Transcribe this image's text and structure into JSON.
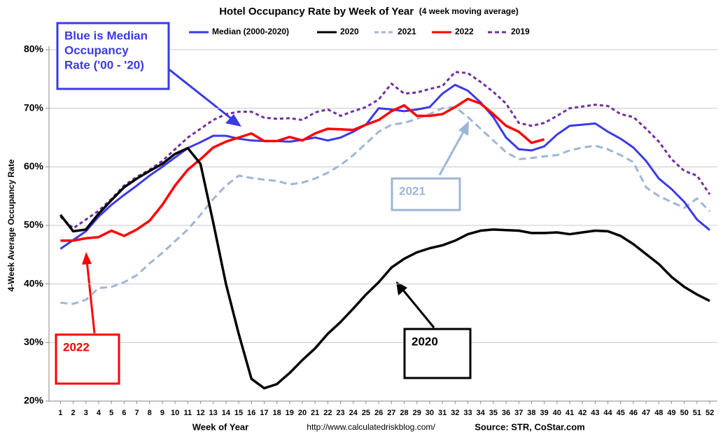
{
  "chart_data": {
    "type": "line",
    "title": "Hotel Occupancy Rate by  Week of Year",
    "subtitle": "(4 week moving average)",
    "x_label": "Week of Year",
    "y_label": "4-Week Average Occupancy Rate",
    "source_url": "http://www.calculatedriskblog.com/",
    "source": "Source: STR, CoStar.com",
    "grid": true,
    "xlim": [
      0.1,
      52.6
    ],
    "ylim": [
      20,
      80
    ],
    "yticks": [
      {
        "value": 20,
        "label": "20%"
      },
      {
        "value": 30,
        "label": "30%"
      },
      {
        "value": 40,
        "label": "40%"
      },
      {
        "value": 50,
        "label": "50%"
      },
      {
        "value": 60,
        "label": "60%"
      },
      {
        "value": 70,
        "label": "70%"
      },
      {
        "value": 80,
        "label": "80%"
      }
    ],
    "x": [
      1,
      2,
      3,
      4,
      5,
      6,
      7,
      8,
      9,
      10,
      11,
      12,
      13,
      14,
      15,
      16,
      17,
      18,
      19,
      20,
      21,
      22,
      23,
      24,
      25,
      26,
      27,
      28,
      29,
      30,
      31,
      32,
      33,
      34,
      35,
      36,
      37,
      38,
      39,
      40,
      41,
      42,
      43,
      44,
      45,
      46,
      47,
      48,
      49,
      50,
      51,
      52
    ],
    "series": [
      {
        "name": "Median (2000-2020)",
        "color": "#3a3ae8",
        "dashed": false,
        "values": [
          46,
          47.5,
          49,
          51.5,
          53.5,
          55.2,
          56.8,
          58.5,
          60,
          61.6,
          63.2,
          64.2,
          65.3,
          65.3,
          64.8,
          64.5,
          64.4,
          64.4,
          64.3,
          64.6,
          65,
          64.5,
          65,
          66,
          67.2,
          70,
          69.8,
          69.5,
          69.8,
          70.2,
          72.5,
          74,
          73,
          71,
          68.5,
          65,
          63,
          62.8,
          63.5,
          65.5,
          67,
          67.2,
          67.4,
          66,
          64.8,
          63.3,
          61,
          58,
          56.2,
          54,
          51,
          49.2
        ]
      },
      {
        "name": "2020",
        "color": "#000000",
        "dashed": false,
        "values": [
          51.8,
          49,
          49.3,
          52,
          54.3,
          56.5,
          58,
          59.3,
          60.5,
          62.2,
          63.2,
          60.5,
          50.5,
          40,
          31.5,
          23.8,
          22.2,
          22.9,
          24.8,
          27,
          29,
          31.5,
          33.5,
          35.8,
          38.2,
          40.3,
          42.8,
          44.3,
          45.4,
          46.1,
          46.6,
          47.4,
          48.5,
          49.1,
          49.3,
          49.2,
          49.1,
          48.7,
          48.7,
          48.8,
          48.5,
          48.8,
          49.1,
          49,
          48.2,
          46.8,
          45.1,
          43.4,
          41.2,
          39.5,
          38.2,
          37.1
        ]
      },
      {
        "name": "2021",
        "color": "#9db6d8",
        "dashed": true,
        "values": [
          36.8,
          36.6,
          37.3,
          39.3,
          39.5,
          40.3,
          41.5,
          43.5,
          45.3,
          47.3,
          49.3,
          51.8,
          54.5,
          56.8,
          58.5,
          58.1,
          57.8,
          57.6,
          57,
          57.3,
          58,
          59,
          60.3,
          62,
          64,
          66,
          67.2,
          67.5,
          68.2,
          69,
          70,
          70.2,
          68.5,
          66.5,
          64.5,
          62.5,
          61.3,
          61.5,
          61.8,
          62,
          62.8,
          63.3,
          63.6,
          63,
          62,
          60.8,
          56.5,
          55,
          54,
          53,
          54.6,
          52.4
        ]
      },
      {
        "name": "2022",
        "color": "#ff0000",
        "dashed": false,
        "values": [
          47.4,
          47.4,
          47.8,
          48,
          49.1,
          48.2,
          49.3,
          50.8,
          53.5,
          56.8,
          59.5,
          61.3,
          63.3,
          64.3,
          65,
          65.7,
          64.4,
          64.4,
          65.1,
          64.5,
          65.7,
          66.5,
          66.4,
          66.3,
          67.2,
          68,
          69.5,
          70.5,
          68.7,
          68.7,
          69,
          70.2,
          71.6,
          70.8,
          69,
          67,
          66,
          64.1,
          64.7,
          null,
          null,
          null,
          null,
          null,
          null,
          null,
          null,
          null,
          null,
          null,
          null,
          null
        ]
      },
      {
        "name": "2019",
        "color": "#7030a0",
        "dashed": true,
        "values": [
          51.5,
          49.5,
          51,
          52.5,
          54.5,
          56.8,
          58.3,
          59.5,
          61,
          63,
          65,
          66.5,
          68,
          69,
          69.4,
          69.4,
          68.4,
          68.2,
          68.3,
          68,
          69.3,
          69.8,
          68.7,
          69.5,
          70.2,
          71.5,
          74.2,
          72.5,
          72.7,
          73.3,
          73.8,
          76.2,
          76,
          74.5,
          72.8,
          70.8,
          67.5,
          67,
          67.5,
          68.7,
          70,
          70.3,
          70.6,
          70.4,
          69,
          68.5,
          66.5,
          64.3,
          61.3,
          59.3,
          58.5,
          55.3
        ]
      }
    ],
    "annotations": [
      {
        "lines": [
          "Blue is Median",
          "Occupancy",
          "Rate ('00 - '20)"
        ]
      },
      {
        "lines": [
          "2021"
        ]
      },
      {
        "lines": [
          "2022"
        ]
      },
      {
        "lines": [
          "2020"
        ]
      }
    ]
  }
}
